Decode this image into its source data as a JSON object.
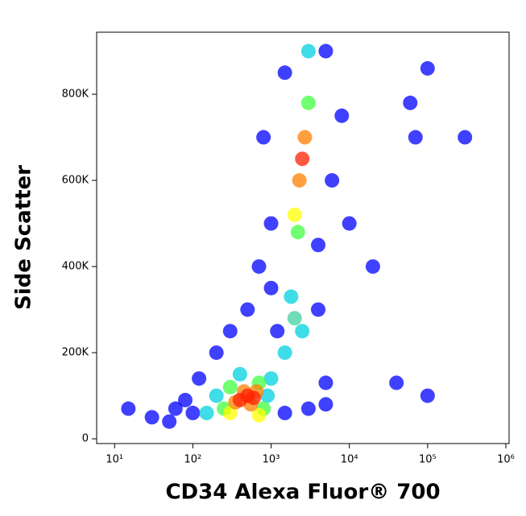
{
  "chart_data": {
    "type": "scatter",
    "x_label": "CD34 Alexa Fluor® 700",
    "y_label": "Side Scatter",
    "log_x": true,
    "xlim": [
      5.9,
      1100000
    ],
    "ylim": [
      -11000,
      944000
    ],
    "xticks": [
      {
        "value": 10,
        "label": "10¹"
      },
      {
        "value": 100,
        "label": "10²"
      },
      {
        "value": 1000,
        "label": "10³"
      },
      {
        "value": 10000,
        "label": "10⁴"
      },
      {
        "value": 100000,
        "label": "10⁵"
      },
      {
        "value": 1000000,
        "label": "10⁶"
      }
    ],
    "yticks": [
      0,
      {
        "value": 200000,
        "label": "200K"
      },
      {
        "value": 400000,
        "label": "400K"
      },
      {
        "value": 600000,
        "label": "600K"
      },
      {
        "value": 800000,
        "label": "800K"
      }
    ],
    "x": [
      100000,
      60000,
      300000,
      70000,
      100000,
      40000,
      5000,
      1000,
      800,
      1500,
      5000,
      6000,
      4000,
      700,
      1000,
      8000,
      10000,
      20000,
      500,
      300,
      200,
      100,
      60,
      30,
      15,
      50,
      80,
      120,
      1500,
      3000,
      5000,
      1200,
      4000,
      200,
      900,
      400,
      1000,
      150,
      1500,
      2500,
      1800,
      3000,
      3000,
      2200,
      300,
      700,
      250,
      800,
      300,
      700,
      2000,
      2000,
      350,
      550,
      450,
      650,
      2300,
      2700,
      400,
      500,
      600,
      2500
    ],
    "y": [
      860000,
      780000,
      700000,
      700000,
      100000,
      130000,
      130000,
      500000,
      700000,
      850000,
      900000,
      600000,
      450000,
      400000,
      350000,
      750000,
      500000,
      400000,
      300000,
      250000,
      200000,
      60000,
      70000,
      50000,
      70000,
      40000,
      90000,
      140000,
      60000,
      70000,
      80000,
      250000,
      300000,
      100000,
      100000,
      150000,
      140000,
      60000,
      200000,
      250000,
      330000,
      900000,
      780000,
      480000,
      120000,
      130000,
      70000,
      70000,
      60000,
      55000,
      280000,
      520000,
      85000,
      80000,
      110000,
      110000,
      600000,
      700000,
      90000,
      100000,
      95000,
      650000
    ],
    "colors": [
      "#0000ff",
      "#0000ff",
      "#0000ff",
      "#0000ff",
      "#0000ff",
      "#0000ff",
      "#0000ff",
      "#0000ff",
      "#0000ff",
      "#0000ff",
      "#0000ff",
      "#0000ff",
      "#0000ff",
      "#0000ff",
      "#0000ff",
      "#0000ff",
      "#0000ff",
      "#0000ff",
      "#0000ff",
      "#0000ff",
      "#0000ff",
      "#0000ff",
      "#0000ff",
      "#0000ff",
      "#0000ff",
      "#0000ff",
      "#0000ff",
      "#0000ff",
      "#0000ff",
      "#0000ff",
      "#0000ff",
      "#0000ff",
      "#0000ff",
      "#00d0e0",
      "#00d0e0",
      "#00d0e0",
      "#00d0e0",
      "#00d0e0",
      "#00d0e0",
      "#00d0e0",
      "#00d0e0",
      "#00d0e0",
      "#40ff40",
      "#40ff40",
      "#40ff40",
      "#40ff40",
      "#40ff40",
      "#40ff40",
      "#ffff00",
      "#ffff00",
      "#40d0a0",
      "#ffff00",
      "#ff8000",
      "#ff8000",
      "#ff8000",
      "#ff8000",
      "#ff8000",
      "#ff8000",
      "#ff2000",
      "#ff2000",
      "#ff2000",
      "#ff2000"
    ]
  }
}
